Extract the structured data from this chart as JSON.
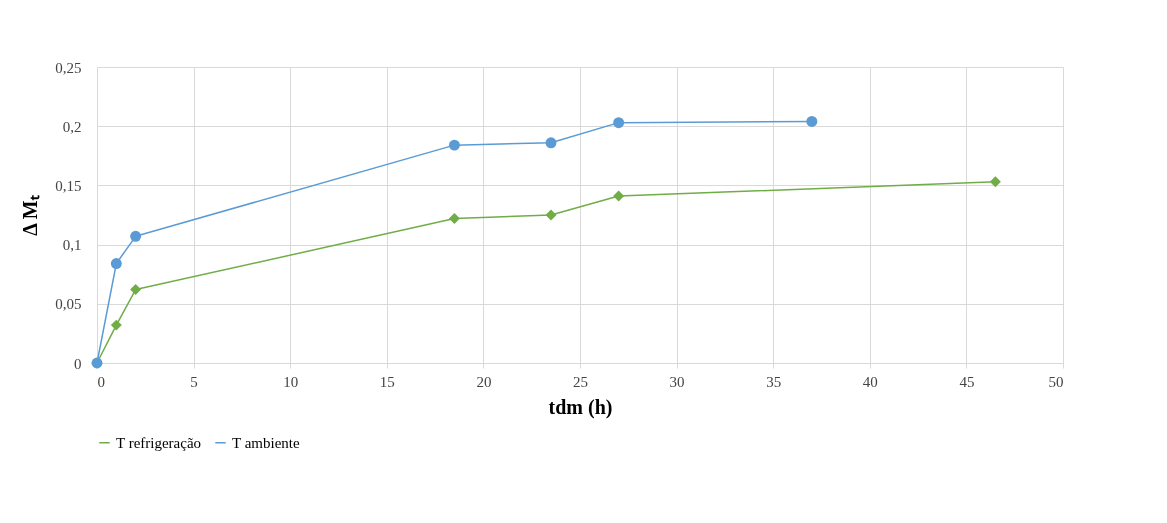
{
  "chart_data": {
    "type": "line",
    "xlabel": "tdm (h)",
    "ylabel": "Δ Mₜ",
    "xlim": [
      0,
      50
    ],
    "xticks": [
      0,
      5,
      10,
      15,
      20,
      25,
      30,
      35,
      40,
      45,
      50
    ],
    "ylim": [
      0,
      0.25
    ],
    "yticks": [
      0,
      {
        "value": 0.05,
        "label": "0,05"
      },
      {
        "value": 0.1,
        "label": "0,1"
      },
      {
        "value": 0.15,
        "label": "0,15"
      },
      {
        "value": 0.2,
        "label": "0,2"
      },
      {
        "value": 0.25,
        "label": "0,25"
      }
    ],
    "grid": true,
    "legend": "bottom",
    "line_style": "solid",
    "series": [
      {
        "name": "T refrigeração",
        "color": "#70ad47",
        "marker": "diamond",
        "x": [
          0,
          1,
          2,
          18.5,
          23.5,
          27,
          46.5
        ],
        "values": [
          0,
          0.032,
          0.062,
          0.122,
          0.125,
          0.141,
          0.153
        ]
      },
      {
        "name": "T ambiente",
        "color": "#5b9bd5",
        "marker": "circle",
        "x": [
          0,
          1,
          2,
          18.5,
          23.5,
          27,
          37
        ],
        "values": [
          0,
          0.084,
          0.107,
          0.184,
          0.186,
          0.203,
          0.204
        ]
      }
    ]
  }
}
